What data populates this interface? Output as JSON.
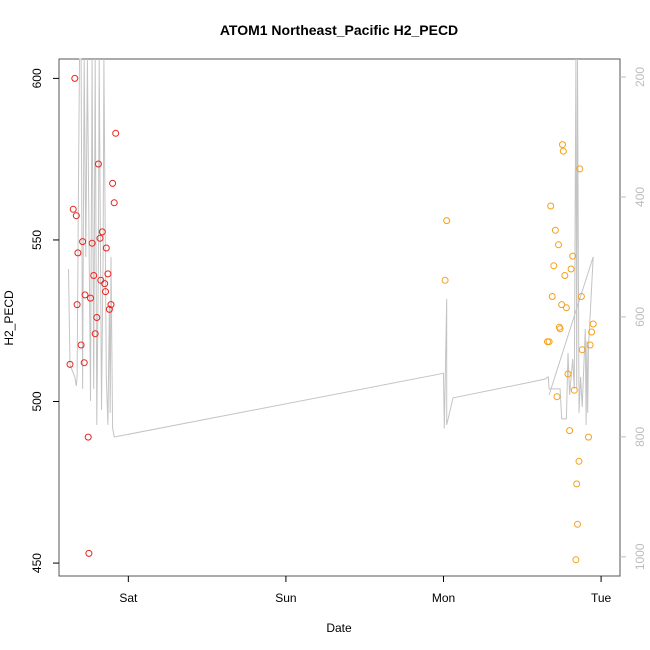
{
  "chart_data": {
    "type": "scatter",
    "title": "ATOM1 Northeast_Pacific H2_PECD",
    "xlabel": "Date",
    "ylabel": "H2_PECD",
    "x_ticks": [
      {
        "label": "Sat",
        "value": 1.0
      },
      {
        "label": "Sun",
        "value": 2.0
      },
      {
        "label": "Mon",
        "value": 3.0
      },
      {
        "label": "Tue",
        "value": 4.0
      }
    ],
    "xlim": [
      0.56,
      4.12
    ],
    "ylim": [
      446,
      606
    ],
    "y_ticks": [
      450,
      500,
      550,
      600
    ],
    "y2_ticks": [
      200,
      400,
      600,
      800,
      1000
    ],
    "y2_lim": [
      1032,
      170
    ],
    "y2_reversed": true,
    "colors": {
      "series1": "#e8241f",
      "series2": "#f5a01a",
      "line": "#c4c4c4",
      "right_axis": "#bdbdbd",
      "frame": "#555555"
    },
    "series": [
      {
        "values": [
          [
            0.63,
            511.5
          ],
          [
            0.65,
            559.5
          ],
          [
            0.66,
            600.0
          ],
          [
            0.67,
            557.5
          ],
          [
            0.675,
            530.0
          ],
          [
            0.68,
            546.0
          ],
          [
            0.7,
            517.5
          ],
          [
            0.71,
            549.5
          ],
          [
            0.72,
            512.0
          ],
          [
            0.725,
            533.0
          ],
          [
            0.745,
            489.0
          ],
          [
            0.75,
            453.0
          ],
          [
            0.76,
            532.0
          ],
          [
            0.77,
            549.0
          ],
          [
            0.78,
            539.0
          ],
          [
            0.79,
            521.0
          ],
          [
            0.8,
            526.0
          ],
          [
            0.81,
            573.5
          ],
          [
            0.82,
            550.5
          ],
          [
            0.825,
            537.5
          ],
          [
            0.835,
            552.5
          ],
          [
            0.85,
            536.5
          ],
          [
            0.855,
            534.0
          ],
          [
            0.86,
            547.5
          ],
          [
            0.87,
            539.5
          ],
          [
            0.88,
            528.5
          ],
          [
            0.89,
            530.0
          ],
          [
            0.9,
            567.5
          ],
          [
            0.91,
            561.5
          ],
          [
            0.92,
            583.0
          ]
        ]
      },
      {
        "values": [
          [
            3.01,
            537.5
          ],
          [
            3.02,
            556.0
          ],
          [
            3.66,
            518.5
          ],
          [
            3.67,
            518.5
          ],
          [
            3.68,
            560.5
          ],
          [
            3.69,
            532.5
          ],
          [
            3.7,
            542.0
          ],
          [
            3.71,
            553.0
          ],
          [
            3.72,
            501.5
          ],
          [
            3.73,
            548.5
          ],
          [
            3.735,
            523.0
          ],
          [
            3.74,
            522.5
          ],
          [
            3.75,
            530.0
          ],
          [
            3.755,
            579.5
          ],
          [
            3.76,
            577.5
          ],
          [
            3.77,
            539.0
          ],
          [
            3.78,
            529.0
          ],
          [
            3.79,
            508.5
          ],
          [
            3.8,
            491.0
          ],
          [
            3.81,
            541.0
          ],
          [
            3.82,
            545.0
          ],
          [
            3.83,
            503.5
          ],
          [
            3.84,
            451.0
          ],
          [
            3.845,
            474.5
          ],
          [
            3.85,
            462.0
          ],
          [
            3.86,
            481.5
          ],
          [
            3.865,
            572.0
          ],
          [
            3.875,
            532.5
          ],
          [
            3.88,
            516.0
          ],
          [
            3.92,
            489.0
          ],
          [
            3.93,
            517.5
          ],
          [
            3.94,
            521.5
          ],
          [
            3.95,
            524.0
          ]
        ]
      }
    ],
    "line_y2": [
      [
        0.62,
        520
      ],
      [
        0.63,
        680
      ],
      [
        0.66,
        700
      ],
      [
        0.67,
        715
      ],
      [
        0.675,
        700
      ],
      [
        0.685,
        330
      ],
      [
        0.69,
        165
      ],
      [
        0.7,
        165
      ],
      [
        0.71,
        720
      ],
      [
        0.72,
        165
      ],
      [
        0.73,
        500
      ],
      [
        0.74,
        165
      ],
      [
        0.76,
        740
      ],
      [
        0.77,
        165
      ],
      [
        0.78,
        720
      ],
      [
        0.79,
        165
      ],
      [
        0.8,
        780
      ],
      [
        0.81,
        500
      ],
      [
        0.815,
        165
      ],
      [
        0.83,
        755
      ],
      [
        0.84,
        500
      ],
      [
        0.845,
        165
      ],
      [
        0.86,
        700
      ],
      [
        0.87,
        780
      ],
      [
        0.88,
        580
      ],
      [
        0.885,
        760
      ],
      [
        0.89,
        500
      ],
      [
        0.9,
        785
      ],
      [
        0.91,
        800
      ],
      [
        0.915,
        800
      ],
      [
        3.0,
        694
      ],
      [
        3.005,
        786
      ],
      [
        3.02,
        570
      ],
      [
        3.02,
        780
      ],
      [
        3.06,
        735
      ],
      [
        3.64,
        704
      ],
      [
        3.665,
        700
      ],
      [
        3.67,
        720
      ],
      [
        3.74,
        720
      ],
      [
        3.75,
        770
      ],
      [
        3.78,
        770
      ],
      [
        3.79,
        660
      ],
      [
        3.8,
        730
      ],
      [
        3.82,
        670
      ],
      [
        3.83,
        720
      ],
      [
        3.84,
        165
      ],
      [
        3.845,
        720
      ],
      [
        3.85,
        165
      ],
      [
        3.86,
        760
      ],
      [
        3.87,
        700
      ],
      [
        3.88,
        750
      ],
      [
        3.9,
        620
      ],
      [
        3.905,
        780
      ],
      [
        3.91,
        640
      ],
      [
        3.915,
        760
      ],
      [
        3.92,
        650
      ],
      [
        3.95,
        500
      ],
      [
        3.67,
        730
      ],
      [
        3.67,
        730
      ],
      [
        3.95,
        500
      ]
    ]
  }
}
